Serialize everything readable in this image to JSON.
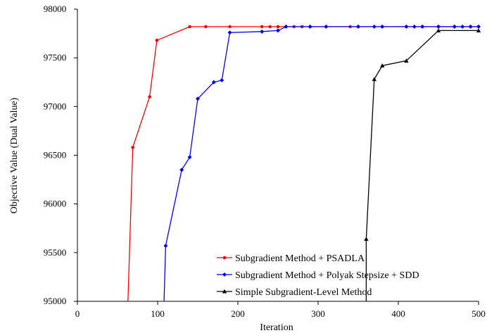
{
  "chart_data": {
    "type": "line",
    "title": "",
    "xlabel": "Iteration",
    "ylabel": "Objective Value (Dual Value)",
    "xlim": [
      0,
      500
    ],
    "ylim": [
      95000,
      98000
    ],
    "x_ticks": [
      0,
      100,
      200,
      300,
      400,
      500
    ],
    "y_ticks": [
      95000,
      95500,
      96000,
      96500,
      97000,
      97500,
      98000
    ],
    "x_tick_labels": [
      "0",
      "100",
      "200",
      "300",
      "400",
      "500"
    ],
    "y_tick_labels": [
      "95000",
      "95500",
      "96000",
      "96500",
      "97000",
      "97500",
      "98000"
    ],
    "grid": false,
    "legend_position": "bottom-right",
    "series": [
      {
        "name": "Subgradient Method + PSADLA",
        "color": "#ff0000",
        "marker": "circle",
        "x": [
          63,
          69,
          90,
          99,
          140,
          160,
          190,
          230,
          240,
          250,
          260,
          270,
          280,
          290,
          310,
          340,
          350,
          380,
          410,
          430,
          450,
          470,
          490,
          500
        ],
        "y": [
          95000,
          96580,
          97100,
          97680,
          97820,
          97820,
          97820,
          97820,
          97820,
          97820,
          97820,
          97820,
          97820,
          97820,
          97820,
          97820,
          97820,
          97820,
          97820,
          97820,
          97820,
          97820,
          97820,
          97820
        ]
      },
      {
        "name": "Subgradient Method + Polyak Stepsize + SDD",
        "color": "#0000ff",
        "marker": "diamond",
        "x": [
          108,
          110,
          130,
          140,
          150,
          170,
          180,
          190,
          230,
          250,
          260,
          290,
          310,
          350,
          370,
          380,
          410,
          420,
          430,
          450,
          470,
          480,
          490,
          500
        ],
        "y": [
          95000,
          95570,
          96350,
          96480,
          97080,
          97250,
          97270,
          97760,
          97770,
          97780,
          97820,
          97820,
          97820,
          97820,
          97820,
          97820,
          97820,
          97820,
          97820,
          97820,
          97820,
          97820,
          97820,
          97820
        ]
      },
      {
        "name": "Simple Subgradient-Level Method",
        "color": "#000000",
        "marker": "triangle",
        "x": [
          360,
          360,
          370,
          380,
          410,
          450,
          500
        ],
        "y": [
          95000,
          95640,
          97280,
          97420,
          97470,
          97780,
          97780
        ]
      }
    ]
  }
}
